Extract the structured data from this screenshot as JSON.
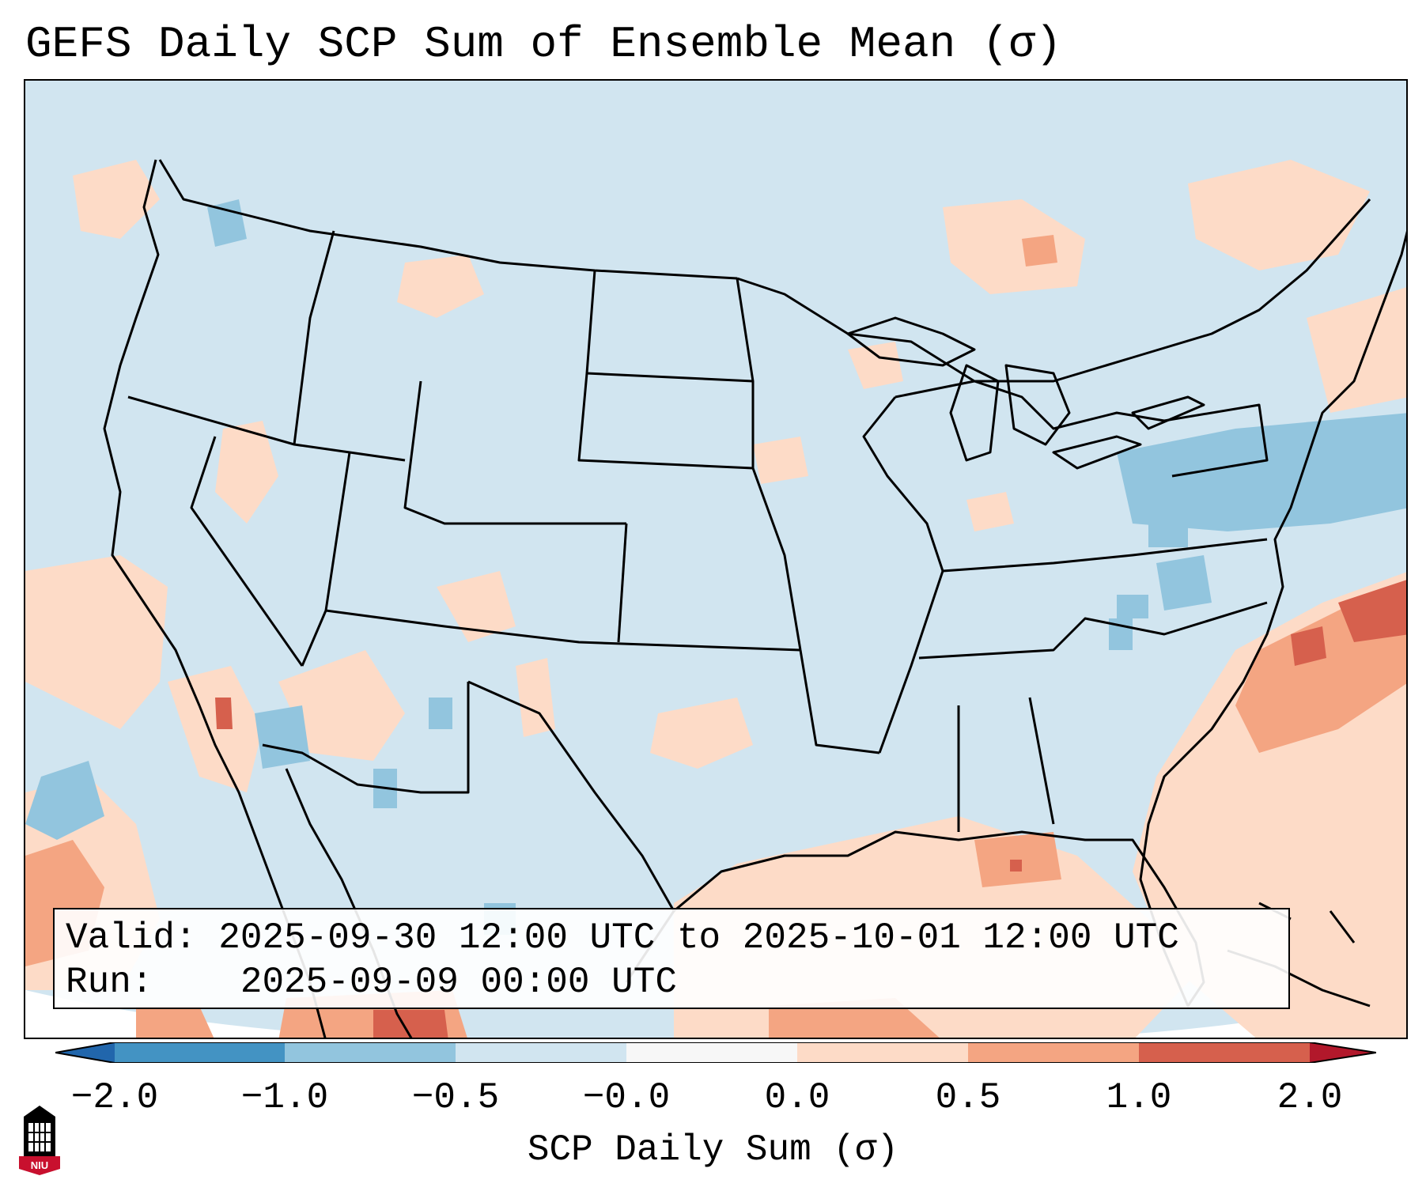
{
  "title": "GEFS Daily SCP Sum of Ensemble Mean (σ)",
  "info": {
    "valid_label": "Valid:",
    "valid_value": "2025-09-30 12:00 UTC to 2025-10-01 12:00 UTC",
    "run_label": "Run:",
    "run_value": "2025-09-09 00:00 UTC"
  },
  "colorbar": {
    "label": "SCP Daily Sum (σ)",
    "ticks": [
      "−2.0",
      "−1.0",
      "−0.5",
      "−0.0",
      "0.0",
      "0.5",
      "1.0",
      "2.0"
    ],
    "colors": [
      "#4393c3",
      "#92c5de",
      "#d1e5f0",
      "#f7f7f7",
      "#fddbc7",
      "#f4a582",
      "#d6604d"
    ],
    "extend_low_color": "#2166ac",
    "extend_high_color": "#b2182b"
  },
  "map": {
    "background_color": "#d1e5f0",
    "coastline_color": "#000000"
  },
  "logo": {
    "text": "NIU",
    "color": "#c8102e"
  }
}
